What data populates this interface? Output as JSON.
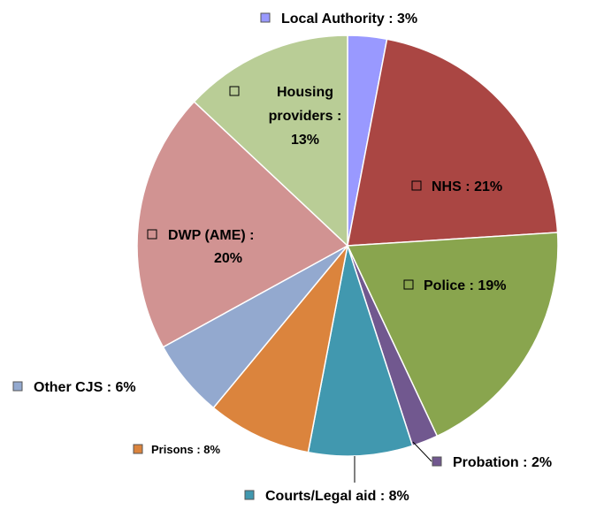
{
  "chart_data": {
    "type": "pie",
    "categories": [
      "Local Authority",
      "NHS",
      "Police",
      "Probation",
      "Courts/Legal aid",
      "Prisons",
      "Other CJS",
      "DWP (AME)",
      "Housing providers"
    ],
    "values": [
      3,
      21,
      19,
      2,
      8,
      8,
      6,
      20,
      13
    ],
    "value_labels": [
      "3%",
      "21%",
      "19%",
      "2%",
      "8%",
      "8%",
      "6%",
      "20%",
      "13%"
    ],
    "separator": ":",
    "colors": [
      "#9999ff",
      "#aa4643",
      "#89a54e",
      "#71588f",
      "#4198af",
      "#db843d",
      "#93a9cf",
      "#d19392",
      "#b9cd96"
    ]
  }
}
